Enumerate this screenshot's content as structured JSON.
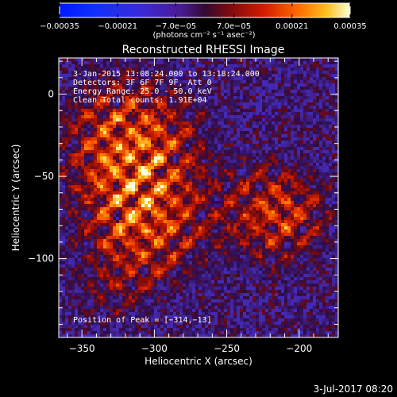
{
  "chart_data": {
    "type": "heatmap",
    "title": "Reconstructed RHESSI Image",
    "xlabel": "Heliocentric X (arcsec)",
    "ylabel": "Heliocentric Y (arcsec)",
    "xlim": [
      -366,
      -173
    ],
    "ylim": [
      -148,
      22
    ],
    "x_ticks": [
      -350,
      -300,
      -250,
      -200
    ],
    "x_tick_labels": [
      "−350",
      "−300",
      "−250",
      "−200"
    ],
    "y_ticks": [
      0,
      -50,
      -100
    ],
    "y_tick_labels": [
      "0",
      "−50",
      "−100"
    ],
    "colorbar": {
      "unit_label": "(photons cm⁻² s⁻¹ asec⁻²)",
      "range": [
        -0.00035,
        0.00035
      ],
      "ticks": [
        -0.00035,
        -0.00021,
        -7e-05,
        7e-05,
        0.00021,
        0.00035
      ],
      "tick_labels": [
        "−0.00035",
        "−0.00021",
        "−7.0e−05",
        "7.0e−05",
        "0.00021",
        "0.00035"
      ]
    },
    "annotations": [
      "3-Jan-2015 13:08:24.000 to 13:18:24.000",
      "Detectors: 3F 6F 7F 9F, Att 0",
      "Energy Range: 25.0 - 50.0 keV",
      "Clean    Total counts: 1.91E+04"
    ],
    "peak_label": "Position of Peak = [−314,−13]",
    "peak_position": [
      -314,
      -13
    ],
    "date_stamp": "3-Jul-2017 08:20",
    "colormap": "rainbow/heat (blue negative, purple zero, red-yellow-white positive)",
    "grid": false
  }
}
